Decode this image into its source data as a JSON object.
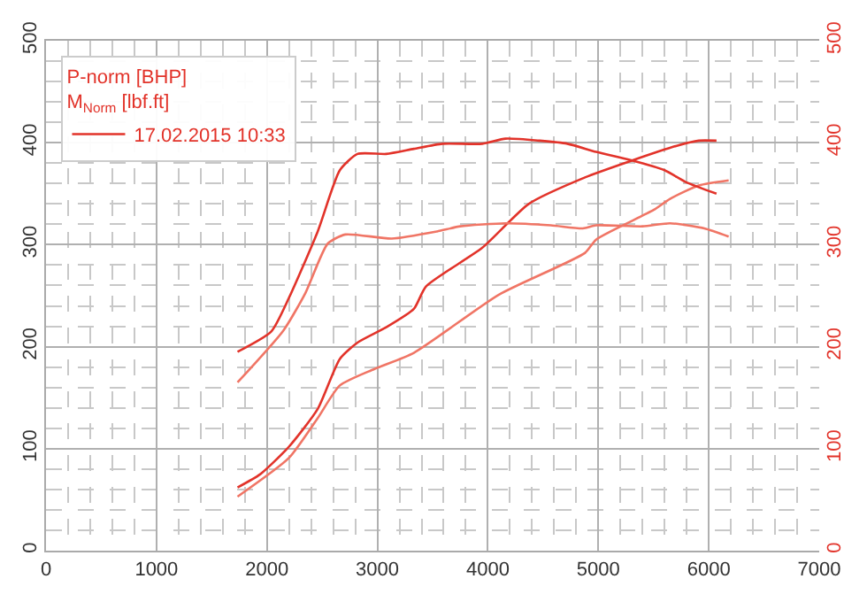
{
  "chart_data": {
    "type": "line",
    "legend_title": "P-norm [BHP]\nM$_{Norm}$ [lbf.ft]",
    "series": [
      {
        "name": "17.02.2015 10:33",
        "color": "#e2332a",
        "x": [
          1734,
          1940,
          2200,
          2460,
          2660,
          2820,
          3080,
          3330,
          3440,
          3950,
          4370,
          4880,
          5290,
          5710,
          5910,
          6070
        ],
        "values": [
          62,
          75,
          102,
          139,
          188,
          204,
          219,
          237,
          259,
          297,
          340,
          366,
          382,
          397,
          402,
          402
        ]
      },
      {
        "color": "#e2332a",
        "axis": "y2",
        "x": [
          1734,
          2040,
          2200,
          2460,
          2660,
          2820,
          3080,
          3330,
          3590,
          3950,
          4160,
          4470,
          4720,
          4980,
          5290,
          5600,
          5800,
          6070
        ],
        "values": [
          195,
          215,
          248,
          313,
          373,
          389,
          389,
          394,
          399,
          399,
          404,
          402,
          399,
          391,
          383,
          373,
          361,
          350
        ]
      },
      {
        "color": "#f07565",
        "x": [
          1734,
          2200,
          2460,
          2660,
          2970,
          3330,
          4100,
          4880,
          4980,
          5500,
          5650,
          5910,
          6180
        ],
        "values": [
          53,
          91,
          130,
          162,
          178,
          194,
          251,
          292,
          305,
          334,
          345,
          358,
          363
        ]
      },
      {
        "color": "#f07565",
        "axis": "y2",
        "x": [
          1734,
          2150,
          2350,
          2550,
          2710,
          3130,
          3540,
          3750,
          4160,
          4570,
          4860,
          4980,
          5400,
          5650,
          5960,
          6180
        ],
        "values": [
          165,
          216,
          253,
          301,
          310,
          306,
          313,
          318,
          321,
          319,
          316,
          319,
          318,
          321,
          316,
          308
        ]
      }
    ],
    "xlim": [
      0,
      7000
    ],
    "xticks": [
      0,
      1000,
      2000,
      3000,
      4000,
      5000,
      6000,
      7000
    ],
    "ylim": [
      0,
      500
    ],
    "yticks": [
      0,
      100,
      200,
      300,
      400,
      500
    ],
    "y2lim": [
      0,
      500
    ],
    "y2ticks": [
      0,
      100,
      200,
      300,
      400,
      500
    ],
    "grid": true,
    "legend": "top left",
    "marker": "none",
    "line_style": "solid"
  }
}
